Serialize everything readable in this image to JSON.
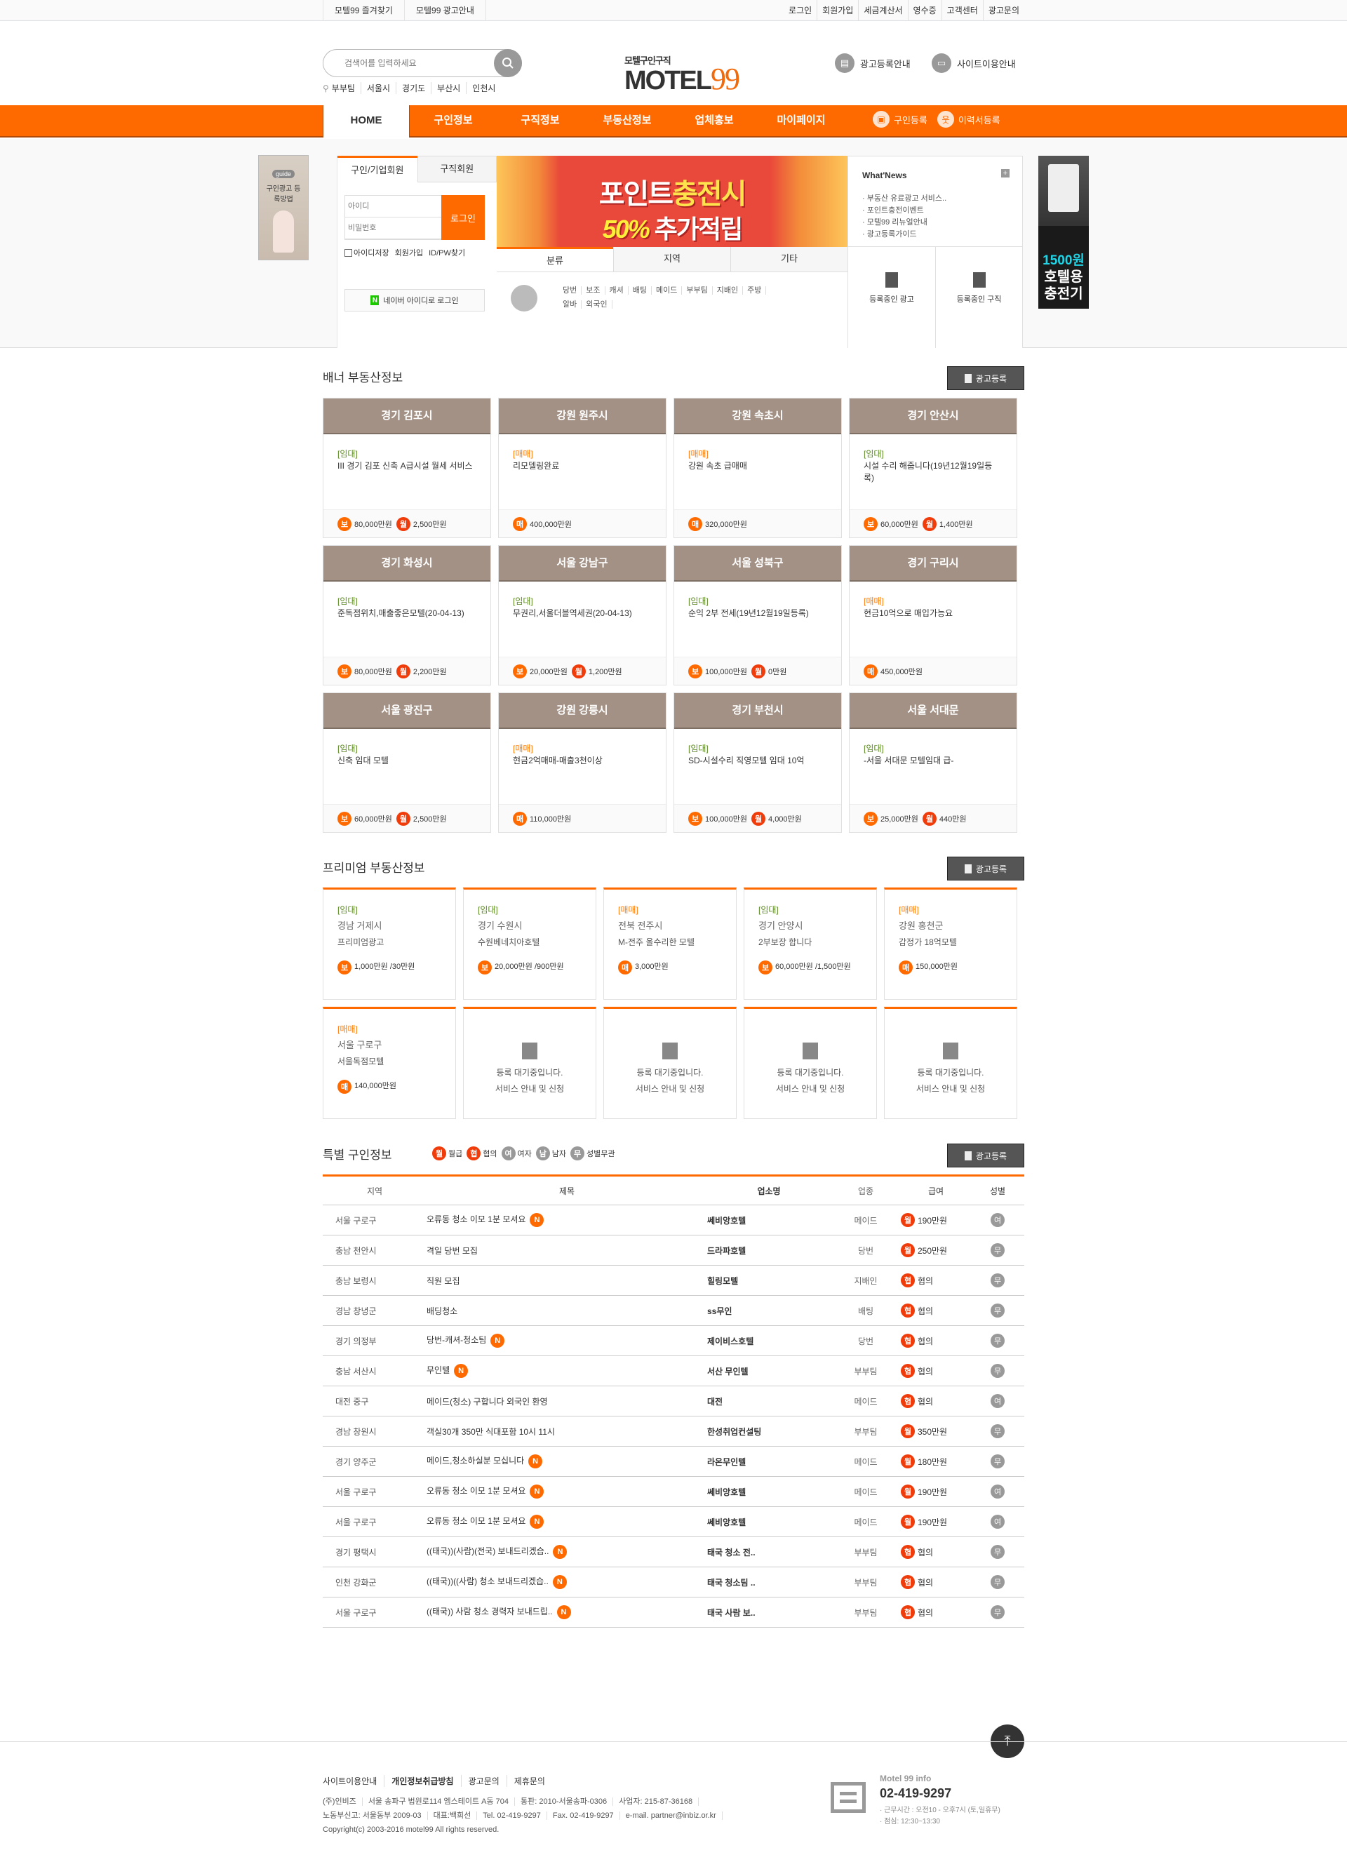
{
  "topbar": {
    "left": [
      "모텔99 즐겨찾기",
      "모텔99 광고안내"
    ],
    "right": [
      "로그인",
      "회원가입",
      "세금계산서",
      "영수증",
      "고객센터",
      "광고문의"
    ]
  },
  "header": {
    "search_placeholder": "검색어를 입력하세요",
    "keywords": [
      "부부팀",
      "서울시",
      "경기도",
      "부산시",
      "인천시"
    ],
    "logo_sub": "모텔구인구직",
    "logo_main": "MOTEL",
    "logo_num": "99",
    "links": [
      "광고등록안내",
      "사이트이용안내"
    ]
  },
  "nav": {
    "items": [
      "HOME",
      "구인정보",
      "구직정보",
      "부동산정보",
      "업체홍보",
      "마이페이지"
    ],
    "side": [
      "구인등록",
      "이력서등록"
    ]
  },
  "guide_ad": {
    "badge": "guide",
    "text": "구인광고 등록방법"
  },
  "login": {
    "tabs": [
      "구인/기업회원",
      "구직회원"
    ],
    "id_placeholder": "아이디",
    "pw_placeholder": "비밀번호",
    "login_button": "로그인",
    "save_id": "아이디저장",
    "join": "회원가입",
    "find": "ID/PW찾기",
    "naver": "네이버 아이디로 로그인"
  },
  "banner": {
    "line1a": "포인트",
    "line1b": "충전시",
    "line2a": "50%",
    "line2b": "추가적립"
  },
  "category_tabs": [
    "분류",
    "지역",
    "기타"
  ],
  "categories": [
    "당번",
    "보조",
    "캐셔",
    "배팅",
    "메이드",
    "부부팀",
    "지배인",
    "주방",
    "알바",
    "외국인"
  ],
  "news": {
    "title": "What'News",
    "items": [
      "부동산 유료광고 서비스..",
      "포인트충전이벤트",
      "모텔99 리뉴얼안내",
      "광고등록가이드"
    ],
    "buttons": [
      "등록중인 광고",
      "등록중인 구직"
    ]
  },
  "right_ad": {
    "price": "1500원",
    "text1": "호텔용",
    "text2": "충전기"
  },
  "banner_realestate": {
    "title": "배너 부동산정보",
    "register": "광고등록",
    "cards": [
      {
        "region": "경기 김포시",
        "type": "[임대]",
        "kind": "r",
        "desc": "III 경기 김포 신축 A급시설 월세 서비스",
        "prices": [
          [
            "보",
            "80,000만원"
          ],
          [
            "월",
            "2,500만원"
          ]
        ]
      },
      {
        "region": "강원 원주시",
        "type": "[매매]",
        "kind": "s",
        "desc": "리모델링완료",
        "prices": [
          [
            "매",
            "400,000만원"
          ]
        ]
      },
      {
        "region": "강원 속초시",
        "type": "[매매]",
        "kind": "s",
        "desc": "강원 속초 급매매",
        "prices": [
          [
            "매",
            "320,000만원"
          ]
        ]
      },
      {
        "region": "경기 안산시",
        "type": "[임대]",
        "kind": "r",
        "desc": "시설 수리 해줍니다(19년12월19일등록)",
        "prices": [
          [
            "보",
            "60,000만원"
          ],
          [
            "월",
            "1,400만원"
          ]
        ]
      },
      {
        "region": "경기 화성시",
        "type": "[임대]",
        "kind": "r",
        "desc": "준독점위치,매출좋은모텔(20-04-13)",
        "prices": [
          [
            "보",
            "80,000만원"
          ],
          [
            "월",
            "2,200만원"
          ]
        ]
      },
      {
        "region": "서울 강남구",
        "type": "[임대]",
        "kind": "r",
        "desc": "무권리,서울더블역세권(20-04-13)",
        "prices": [
          [
            "보",
            "20,000만원"
          ],
          [
            "월",
            "1,200만원"
          ]
        ]
      },
      {
        "region": "서울 성북구",
        "type": "[임대]",
        "kind": "r",
        "desc": "순익 2부 전세(19년12월19일등록)",
        "prices": [
          [
            "보",
            "100,000만원"
          ],
          [
            "월",
            "0만원"
          ]
        ]
      },
      {
        "region": "경기 구리시",
        "type": "[매매]",
        "kind": "s",
        "desc": "현금10억으로 매입가능요",
        "prices": [
          [
            "매",
            "450,000만원"
          ]
        ]
      },
      {
        "region": "서울 광진구",
        "type": "[임대]",
        "kind": "r",
        "desc": "신축 임대 모텔",
        "prices": [
          [
            "보",
            "60,000만원"
          ],
          [
            "월",
            "2,500만원"
          ]
        ]
      },
      {
        "region": "강원 강릉시",
        "type": "[매매]",
        "kind": "s",
        "desc": "현금2억매매-매출3천이상",
        "prices": [
          [
            "매",
            "110,000만원"
          ]
        ]
      },
      {
        "region": "경기 부천시",
        "type": "[임대]",
        "kind": "r",
        "desc": "SD-시설수리 직영모텔 임대 10억",
        "prices": [
          [
            "보",
            "100,000만원"
          ],
          [
            "월",
            "4,000만원"
          ]
        ]
      },
      {
        "region": "서울 서대문",
        "type": "[임대]",
        "kind": "r",
        "desc": "-서울 서대문 모텔임대 급-",
        "prices": [
          [
            "보",
            "25,000만원"
          ],
          [
            "월",
            "440만원"
          ]
        ]
      }
    ]
  },
  "premium": {
    "title": "프리미엄 부동산정보",
    "register": "광고등록",
    "cards": [
      {
        "type": "[임대]",
        "kind": "r",
        "region": "경남 거제시",
        "name": "프리미엄광고",
        "badge": "보",
        "price": "1,000만원 /30만원"
      },
      {
        "type": "[임대]",
        "kind": "r",
        "region": "경기 수원시",
        "name": "수원베네치아호텔",
        "badge": "보",
        "price": "20,000만원 /900만원"
      },
      {
        "type": "[매매]",
        "kind": "s",
        "region": "전북 전주시",
        "name": "M-전주 올수리한 모텔",
        "badge": "매",
        "price": "3,000만원"
      },
      {
        "type": "[임대]",
        "kind": "r",
        "region": "경기 안양시",
        "name": "2부보장 합니다",
        "badge": "보",
        "price": "60,000만원 /1,500만원"
      },
      {
        "type": "[매매]",
        "kind": "s",
        "region": "강원 홍천군",
        "name": "감정가 18억모텔",
        "badge": "매",
        "price": "150,000만원"
      },
      {
        "type": "[매매]",
        "kind": "s",
        "region": "서울 구로구",
        "name": "서울독점모텔",
        "badge": "매",
        "price": "140,000만원"
      }
    ],
    "empty_line1": "등록 대기중입니다.",
    "empty_line2": "서비스 안내 및 신청",
    "empty_count": 4
  },
  "special": {
    "title": "특별 구인정보",
    "register": "광고등록",
    "legend": [
      [
        "월",
        "월급"
      ],
      [
        "협",
        "협의"
      ],
      [
        "여",
        "여자"
      ],
      [
        "남",
        "남자"
      ],
      [
        "무",
        "성별무관"
      ]
    ],
    "columns": [
      "지역",
      "제목",
      "업소명",
      "업종",
      "급여",
      "성별"
    ],
    "rows": [
      {
        "region": "서울 구로구",
        "title": "오류동 청소 이모 1분 모셔요",
        "new": true,
        "shop": "쎄비앙호텔",
        "job": "메이드",
        "pay_type": "월",
        "pay": "190만원",
        "gender": "여"
      },
      {
        "region": "충남 천안시",
        "title": "격일 당번 모집",
        "new": false,
        "shop": "드라파호텔",
        "job": "당번",
        "pay_type": "월",
        "pay": "250만원",
        "gender": "무"
      },
      {
        "region": "충남 보령시",
        "title": "직원 모집",
        "new": false,
        "shop": "힐링모텔",
        "job": "지배인",
        "pay_type": "협",
        "pay": "협의",
        "gender": "무"
      },
      {
        "region": "경남 창녕군",
        "title": "배딩청소",
        "new": false,
        "shop": "ss무인",
        "job": "배팅",
        "pay_type": "협",
        "pay": "협의",
        "gender": "무"
      },
      {
        "region": "경기 의정부",
        "title": "당번-캐셔-청소팀",
        "new": true,
        "shop": "제이비스호텔",
        "job": "당번",
        "pay_type": "협",
        "pay": "협의",
        "gender": "무"
      },
      {
        "region": "충남 서산시",
        "title": "무인텔",
        "new": true,
        "shop": "서산 무인텔",
        "job": "부부팀",
        "pay_type": "협",
        "pay": "협의",
        "gender": "무"
      },
      {
        "region": "대전 중구",
        "title": "메이드(청소) 구합니다 외국인 환영",
        "new": false,
        "shop": "대전",
        "job": "메이드",
        "pay_type": "협",
        "pay": "협의",
        "gender": "여"
      },
      {
        "region": "경남 창원시",
        "title": "객실30개 350만 식대포함 10시 11시",
        "new": false,
        "shop": "한성취업컨설팅",
        "job": "부부팀",
        "pay_type": "월",
        "pay": "350만원",
        "gender": "무"
      },
      {
        "region": "경기 양주군",
        "title": "메이드,청소하실분 모십니다",
        "new": true,
        "shop": "라온무인텔",
        "job": "메이드",
        "pay_type": "월",
        "pay": "180만원",
        "gender": "무"
      },
      {
        "region": "서울 구로구",
        "title": "오류동 청소 이모 1분 모셔요",
        "new": true,
        "shop": "쎄비앙호텔",
        "job": "메이드",
        "pay_type": "월",
        "pay": "190만원",
        "gender": "여"
      },
      {
        "region": "서울 구로구",
        "title": "오류동 청소 이모 1분 모셔요",
        "new": true,
        "shop": "쎄비앙호텔",
        "job": "메이드",
        "pay_type": "월",
        "pay": "190만원",
        "gender": "여"
      },
      {
        "region": "경기 평택시",
        "title": "((태국))(사람)(전국) 보내드리겠습..",
        "new": true,
        "shop": "태국 청소 전..",
        "job": "부부팀",
        "pay_type": "협",
        "pay": "협의",
        "gender": "무"
      },
      {
        "region": "인천 강화군",
        "title": "((태국))((사람) 청소 보내드리겠습..",
        "new": true,
        "shop": "태국 청소팀 ..",
        "job": "부부팀",
        "pay_type": "협",
        "pay": "협의",
        "gender": "무"
      },
      {
        "region": "서울 구로구",
        "title": "((태국)) 사람 청소 경력자 보내드립..",
        "new": true,
        "shop": "태국 사람 보..",
        "job": "부부팀",
        "pay_type": "협",
        "pay": "협의",
        "gender": "무"
      }
    ],
    "new_badge": "N"
  },
  "footer": {
    "links": [
      "사이트이용안내",
      "개인정보취급방침",
      "광고문의",
      "제휴문의"
    ],
    "line1": [
      "(주)인비즈",
      "서울 송파구 법원로114 엠스테이트 A동 704",
      "통판: 2010-서울송파-0306",
      "사업자: 215-87-36168"
    ],
    "line2": [
      "노동부신고: 서울동부 2009-03",
      "대표:백희선",
      "Tel. 02-419-9297",
      "Fax. 02-419-9297",
      "e-mail. partner@inbiz.or.kr"
    ],
    "copyright": "Copyright(c) 2003-2016 motel99 All rights reserved.",
    "cs_title": "Motel 99 info",
    "cs_phone": "02-419-9297",
    "cs_hours": "· 근무시간 : 오전10 - 오후7시 (토,일휴무)",
    "cs_lunch": "· 점심: 12:30~13:30"
  },
  "colors": {
    "accent": "#ff6a00",
    "card_header": "#a39185",
    "rent": "#5b8a1e",
    "sale": "#ff7a00"
  }
}
